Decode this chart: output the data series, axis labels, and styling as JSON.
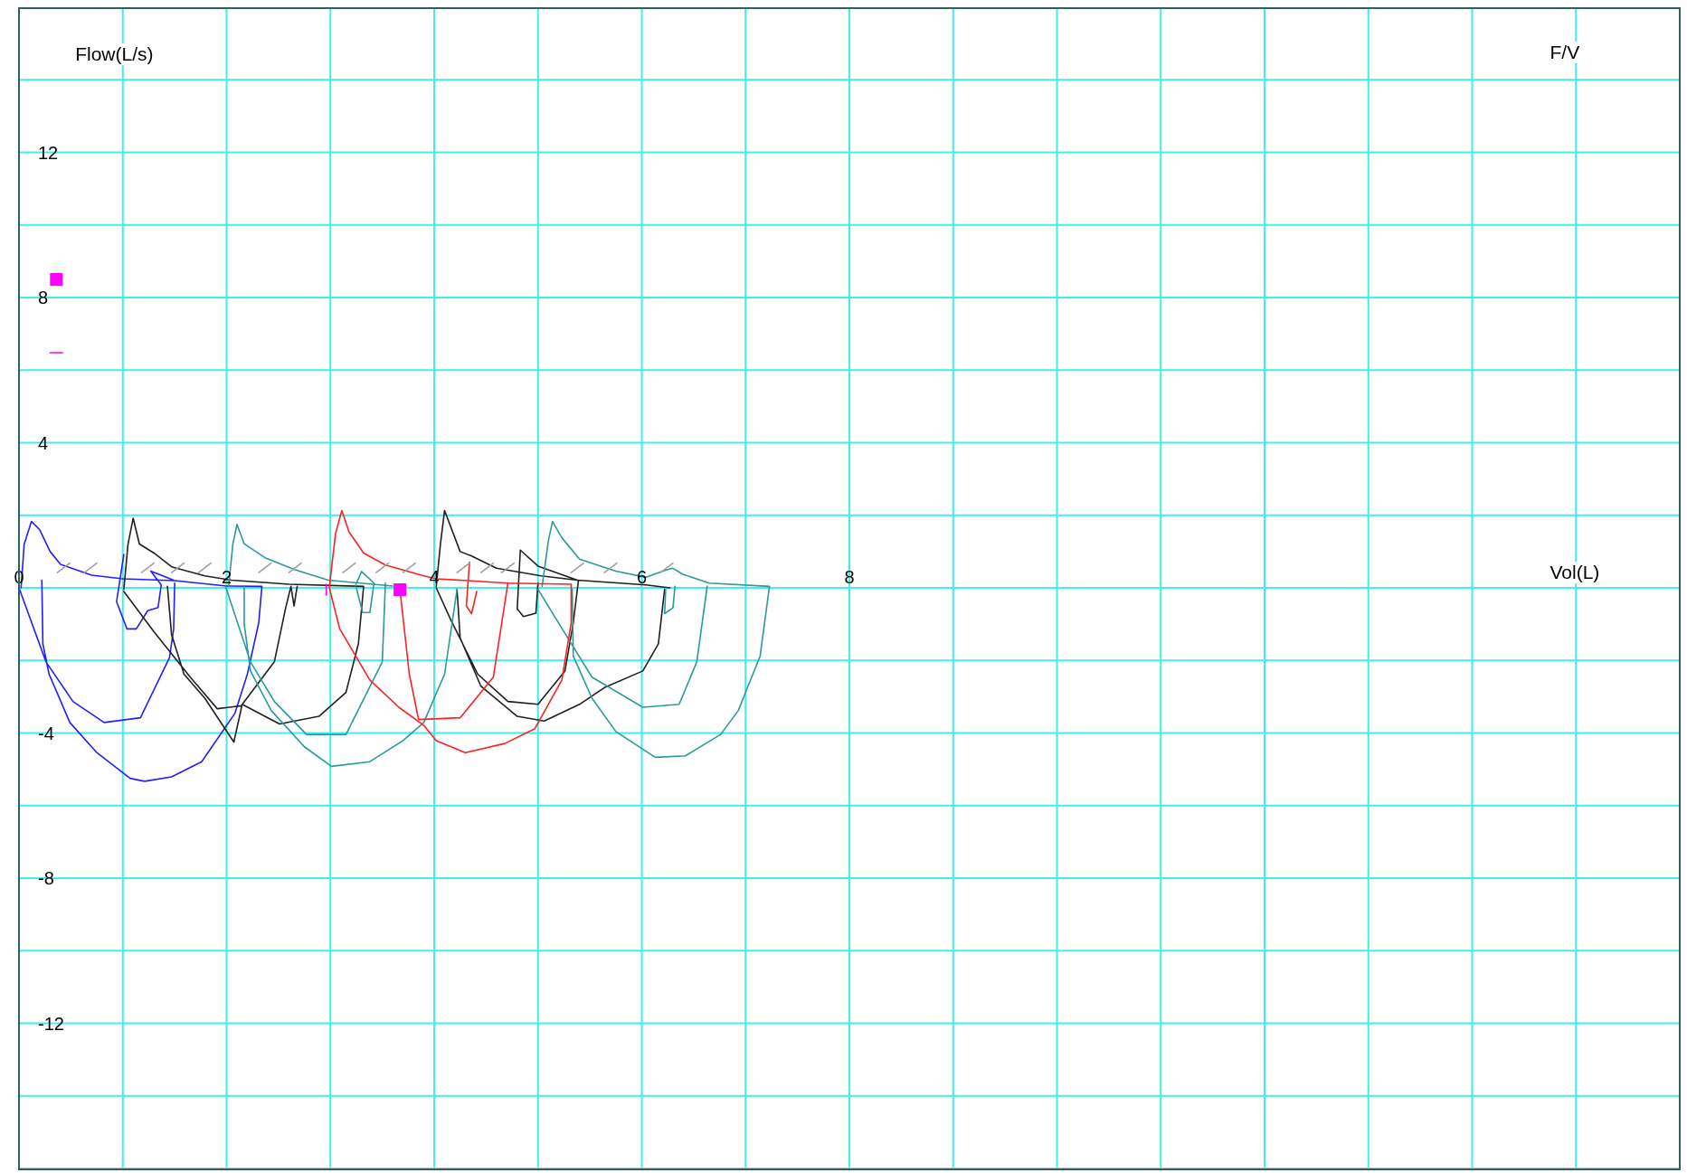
{
  "chart_data": {
    "type": "line",
    "title": "F/V",
    "xlabel": "Vol(L)",
    "ylabel": "Flow(L/s)",
    "xlim": [
      0,
      16
    ],
    "ylim": [
      -16,
      16
    ],
    "xticks": [
      0,
      {
        "value": 1,
        "label": null
      },
      2,
      {
        "value": 3,
        "label": null
      },
      4,
      {
        "value": 5,
        "label": null
      },
      6,
      {
        "value": 7,
        "label": null
      },
      8,
      {
        "value": 9,
        "label": null
      },
      {
        "value": 10,
        "label": null
      },
      {
        "value": 11,
        "label": null
      },
      {
        "value": 12,
        "label": null
      },
      {
        "value": 13,
        "label": null
      },
      {
        "value": 14,
        "label": null
      },
      {
        "value": 15,
        "label": null
      },
      {
        "value": 16,
        "label": null
      }
    ],
    "yticks": [
      {
        "value": -16,
        "label": null
      },
      {
        "value": -14,
        "label": null
      },
      -12,
      {
        "value": -10,
        "label": null
      },
      -8,
      {
        "value": -6,
        "label": null
      },
      -4,
      {
        "value": -2,
        "label": null
      },
      {
        "value": 0,
        "label": null
      },
      {
        "value": 2,
        "label": null
      },
      4,
      {
        "value": 6,
        "label": null
      },
      8,
      {
        "value": 10,
        "label": null
      },
      12,
      {
        "value": 14,
        "label": null
      },
      {
        "value": 16,
        "label": null
      }
    ],
    "grid": true,
    "marker": "none",
    "line_style": "solid",
    "series": [
      {
        "color": "#2020ff",
        "x": [
          0.02,
          0.05,
          0.12,
          0.2,
          0.3,
          0.4,
          0.7,
          1.0,
          1.5,
          2.0,
          2.34,
          2.31,
          2.2,
          2.08,
          1.76,
          1.47,
          1.21,
          1.07,
          0.75,
          0.49,
          0.29,
          0.23,
          0.22,
          null,
          0.0,
          0.26,
          0.52,
          0.82,
          1.17,
          1.45,
          1.49,
          1.5,
          null,
          1.01,
          0.94,
          1.04,
          1.13,
          1.24,
          1.34,
          1.37,
          1.27,
          1.49
        ],
        "values": [
          0,
          1.2,
          1.83,
          1.6,
          1.0,
          0.65,
          0.35,
          0.25,
          0.2,
          0.05,
          0.04,
          -0.96,
          -2.38,
          -3.46,
          -4.79,
          -5.21,
          -5.33,
          -5.25,
          -4.54,
          -3.71,
          -2.38,
          -1.54,
          0.21,
          null,
          0,
          -2.04,
          -3.13,
          -3.71,
          -3.58,
          -1.92,
          -1.13,
          0.13,
          null,
          0.92,
          -0.38,
          -1.13,
          -1.13,
          -0.63,
          -0.54,
          0.08,
          0.46,
          0.21
        ]
      },
      {
        "color": "#202020",
        "x": [
          1.01,
          1.05,
          1.1,
          1.16,
          1.3,
          1.47,
          1.79,
          2.05,
          2.6,
          3.32,
          3.27,
          3.15,
          2.89,
          2.51,
          2.15,
          2.07,
          1.79,
          1.59,
          1.47,
          1.43,
          null,
          1.01,
          1.3,
          1.65,
          1.91,
          2.14,
          2.46,
          2.57,
          2.62,
          2.65,
          2.68,
          null,
          4.02,
          4.06,
          4.1,
          4.25,
          4.36,
          4.6,
          5.03,
          5.38,
          6.04,
          6.27,
          null,
          4.02,
          4.16,
          4.42,
          4.71,
          5.0,
          5.26,
          5.34,
          5.39,
          null,
          4.22,
          4.25,
          4.45,
          4.8,
          5.06,
          5.4,
          5.64,
          6.01,
          6.16,
          6.22,
          null,
          5.0,
          4.98,
          4.86,
          4.8,
          4.83,
          5.0,
          5.38
        ],
        "values": [
          -0.04,
          1.2,
          1.92,
          1.21,
          0.96,
          0.58,
          0.33,
          0.21,
          0.1,
          0.04,
          -1.54,
          -2.88,
          -3.54,
          -3.75,
          -3.21,
          -4.25,
          -3.04,
          -2.38,
          -1.29,
          0.04,
          null,
          -0.1,
          -1.21,
          -2.46,
          -3.33,
          -3.25,
          -2.04,
          -0.54,
          0.04,
          -0.5,
          0.04,
          null,
          0.04,
          1.2,
          2.13,
          1.0,
          0.88,
          0.54,
          0.33,
          0.21,
          0.08,
          0,
          null,
          0,
          -0.88,
          -2.38,
          -3.13,
          -3.21,
          -2.29,
          -0.96,
          0.21,
          null,
          -0.04,
          -1.38,
          -2.71,
          -3.54,
          -3.67,
          -3.21,
          -2.75,
          -2.29,
          -1.54,
          -0.04,
          null,
          0.13,
          -0.7,
          -0.79,
          -0.58,
          1.04,
          0.6,
          0.21
        ]
      },
      {
        "color": "#2a9a9a",
        "x": [
          2.02,
          2.06,
          2.1,
          2.17,
          2.37,
          2.66,
          2.98,
          3.6,
          null,
          1.99,
          2.23,
          2.46,
          2.77,
          3.15,
          3.5,
          3.53,
          null,
          2.17,
          2.17,
          2.23,
          2.43,
          2.75,
          3.01,
          3.38,
          3.7,
          3.9,
          4.0,
          4.1,
          4.22,
          null,
          3.24,
          3.3,
          3.42,
          3.38,
          3.31,
          3.25,
          null,
          5.04,
          5.1,
          5.14,
          5.23,
          5.4,
          5.75,
          6.04,
          6.24,
          6.3,
          6.39,
          6.65,
          7.23,
          7.14,
          6.93,
          6.76,
          6.42,
          6.13,
          5.75,
          5.52,
          5.34,
          5.33,
          null,
          5.0,
          5.18,
          5.52,
          6.01,
          6.36,
          6.53,
          6.63,
          null,
          6.23,
          6.22,
          6.3,
          6.32
        ],
        "values": [
          0.04,
          1.2,
          1.75,
          1.21,
          0.83,
          0.5,
          0.21,
          0.05,
          null,
          0.04,
          -2.04,
          -3.13,
          -4.04,
          -4.04,
          -2.04,
          0.13,
          null,
          0.04,
          -1.0,
          -2.29,
          -3.38,
          -4.38,
          -4.92,
          -4.79,
          -4.21,
          -3.71,
          -3.04,
          -2.38,
          -0.04,
          null,
          0.05,
          0.45,
          0.13,
          -0.68,
          -0.68,
          0.0,
          null,
          0.04,
          1.3,
          1.83,
          1.38,
          0.79,
          0.46,
          0.29,
          0.5,
          0.54,
          0.38,
          0.13,
          0.04,
          -1.88,
          -3.38,
          -4.04,
          -4.63,
          -4.67,
          -3.96,
          -3.04,
          -1.88,
          -0.04,
          null,
          -0.04,
          -0.88,
          -2.46,
          -3.29,
          -3.21,
          -2.04,
          0.04,
          null,
          -0.04,
          -0.71,
          -0.55,
          0.04
        ]
      },
      {
        "color": "#ff2020",
        "x": [
          2.99,
          3.05,
          3.11,
          3.18,
          3.32,
          3.53,
          3.9,
          4.02,
          4.71,
          5.32,
          5.32,
          5.23,
          4.97,
          4.68,
          4.3,
          4.02,
          3.9,
          3.66,
          3.38,
          3.09,
          2.99,
          null,
          3.67,
          3.76,
          3.85,
          4.25,
          4.57,
          4.71,
          null,
          4.34,
          4.31,
          4.36,
          4.41
        ],
        "values": [
          0.04,
          1.5,
          2.13,
          1.54,
          0.96,
          0.63,
          0.33,
          0.25,
          0.13,
          0.1,
          -0.96,
          -2.54,
          -3.88,
          -4.29,
          -4.54,
          -4.21,
          -3.79,
          -3.29,
          -2.54,
          -1.13,
          0,
          null,
          -0.04,
          -2.38,
          -3.63,
          -3.58,
          -2.46,
          0.13,
          null,
          0.71,
          -0.5,
          -0.71,
          -0.1
        ]
      },
      {
        "color": "#a0a0a0",
        "x": [
          0.37,
          0.49,
          null,
          0.63,
          0.75,
          null,
          1.18,
          1.3,
          null,
          1.47,
          1.59,
          null,
          1.73,
          1.85,
          null,
          2.31,
          2.43,
          null,
          2.6,
          2.72,
          null,
          3.12,
          3.24,
          null,
          3.44,
          3.56,
          null,
          3.7,
          3.82,
          null,
          4.22,
          4.34,
          null,
          4.45,
          4.57,
          null,
          4.65,
          4.77,
          null,
          5.32,
          5.44,
          null,
          5.64,
          5.76,
          null,
          6.18,
          6.3
        ],
        "values": [
          0.42,
          0.68,
          null,
          0.42,
          0.68,
          null,
          0.42,
          0.68,
          null,
          0.42,
          0.68,
          null,
          0.42,
          0.68,
          null,
          0.42,
          0.68,
          null,
          0.42,
          0.68,
          null,
          0.42,
          0.68,
          null,
          0.42,
          0.68,
          null,
          0.42,
          0.68,
          null,
          0.42,
          0.68,
          null,
          0.42,
          0.68,
          null,
          0.42,
          0.68,
          null,
          0.42,
          0.68,
          null,
          0.42,
          0.68,
          null,
          0.42,
          0.68
        ]
      },
      {
        "color": "#ff00ff",
        "x": [
          0.3,
          0.42,
          null,
          2.96,
          2.96
        ],
        "values": [
          6.48,
          6.48,
          null,
          0.1,
          -0.2
        ]
      },
      {
        "type": "scatter",
        "marker": "square",
        "color": "#ff00ff",
        "x": [
          0.36,
          3.67
        ],
        "values": [
          8.5,
          -0.05
        ]
      }
    ]
  }
}
